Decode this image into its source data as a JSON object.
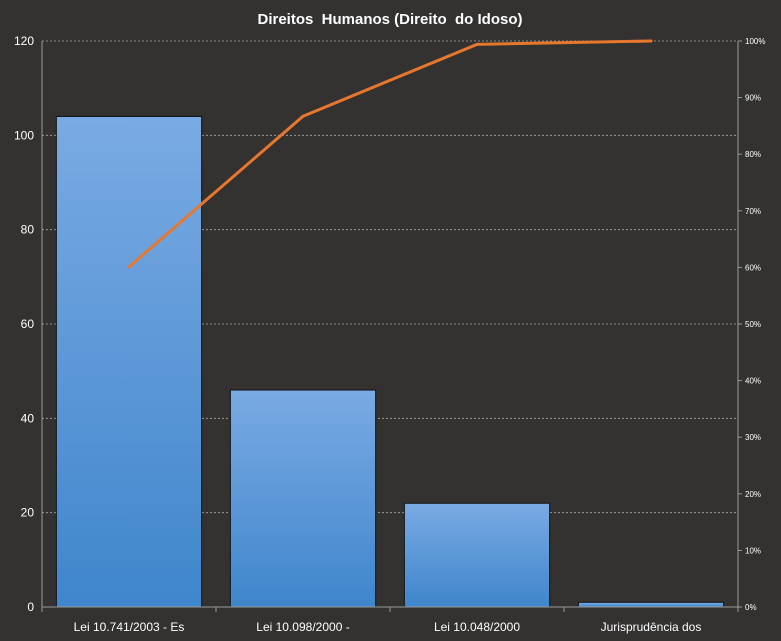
{
  "chart_data": {
    "type": "bar",
    "title": "Direitos  Humanos (Direito  do Idoso)",
    "categories": [
      "Lei 10.741/2003 - Es",
      "Lei 10.098/2000 -",
      "Lei 10.048/2000",
      "Jurisprudência dos"
    ],
    "series": [
      {
        "type": "bar",
        "axis": "left",
        "values": [
          104,
          46,
          22,
          1
        ]
      },
      {
        "type": "line",
        "axis": "right",
        "values": [
          60.1,
          86.7,
          99.4,
          100
        ]
      }
    ],
    "y_left": {
      "lim": [
        0,
        120
      ],
      "ticks": [
        "0",
        "20",
        "40",
        "60",
        "80",
        "100",
        "120"
      ]
    },
    "y_right": {
      "lim": [
        0,
        100
      ],
      "ticks": [
        "0%",
        "10%",
        "20%",
        "30%",
        "40%",
        "50%",
        "60%",
        "70%",
        "80%",
        "90%",
        "100%"
      ]
    },
    "grid": true,
    "legend": "none",
    "colors": {
      "background": "#333230",
      "bar_top": "#7aaae3",
      "bar_bottom": "#3f86cc",
      "bar_edge": "#111111",
      "line": "#e8772e",
      "grid": "#cfcfcf",
      "text": "#ffffff"
    }
  }
}
